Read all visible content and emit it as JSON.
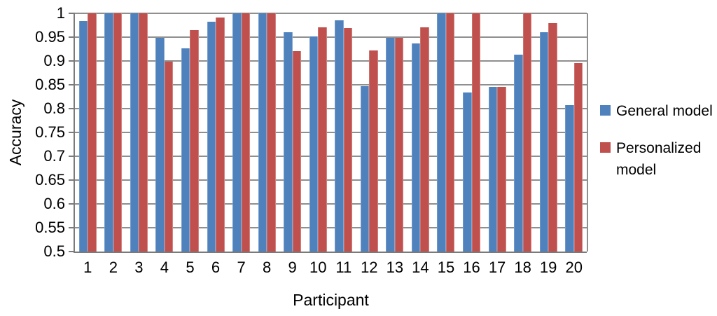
{
  "chart_data": {
    "type": "bar",
    "title": "",
    "xlabel": "Participant",
    "ylabel": "Accuracy",
    "ylim": [
      0.5,
      1.0
    ],
    "ytick_step": 0.05,
    "yticks": [
      "1",
      "0.95",
      "0.9",
      "0.85",
      "0.8",
      "0.75",
      "0.7",
      "0.65",
      "0.6",
      "0.55",
      "0.5"
    ],
    "grid": true,
    "legend_position": "right",
    "categories": [
      "1",
      "2",
      "3",
      "4",
      "5",
      "6",
      "7",
      "8",
      "9",
      "10",
      "11",
      "12",
      "13",
      "14",
      "15",
      "16",
      "17",
      "18",
      "19",
      "20"
    ],
    "series": [
      {
        "name": "General model",
        "color": "#4F81BD",
        "values": [
          0.984,
          1.0,
          1.0,
          0.949,
          0.926,
          0.983,
          1.0,
          1.0,
          0.96,
          0.952,
          0.985,
          0.847,
          0.948,
          0.937,
          1.0,
          0.834,
          0.845,
          0.913,
          0.961,
          0.807
        ]
      },
      {
        "name": "Personalized model",
        "color": "#C0504D",
        "values": [
          1.0,
          1.0,
          1.0,
          0.898,
          0.964,
          0.991,
          1.0,
          1.0,
          0.92,
          0.97,
          0.969,
          0.922,
          0.948,
          0.971,
          1.0,
          1.0,
          0.845,
          1.0,
          0.979,
          0.896
        ]
      }
    ]
  },
  "colors": {
    "background": "#FFFFFF",
    "gridline": "#8F8F8F",
    "axis": "#7A7A7A",
    "text": "#000000",
    "series_general": "#4F81BD",
    "series_personalized": "#C0504D"
  }
}
